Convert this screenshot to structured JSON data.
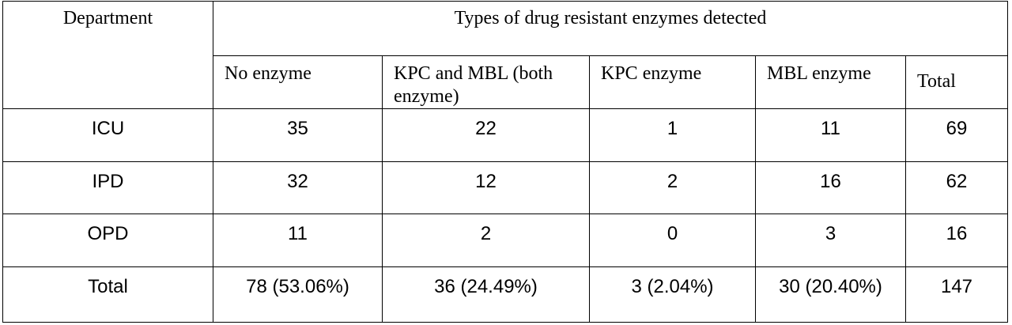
{
  "table": {
    "header": {
      "department": "Department",
      "group_title": "Types of drug resistant enzymes detected",
      "columns": [
        "No enzyme",
        "KPC and MBL (both enzyme)",
        "KPC enzyme",
        "MBL enzyme",
        "Total"
      ]
    },
    "rows": [
      {
        "department": "ICU",
        "cells": [
          "35",
          "22",
          "1",
          "11",
          "69"
        ]
      },
      {
        "department": "IPD",
        "cells": [
          "32",
          "12",
          "2",
          "16",
          "62"
        ]
      },
      {
        "department": "OPD",
        "cells": [
          "11",
          "2",
          "0",
          "3",
          "16"
        ]
      },
      {
        "department": "Total",
        "cells": [
          "78 (53.06%)",
          "36 (24.49%)",
          "3 (2.04%)",
          "30 (20.40%)",
          "147"
        ]
      }
    ]
  }
}
